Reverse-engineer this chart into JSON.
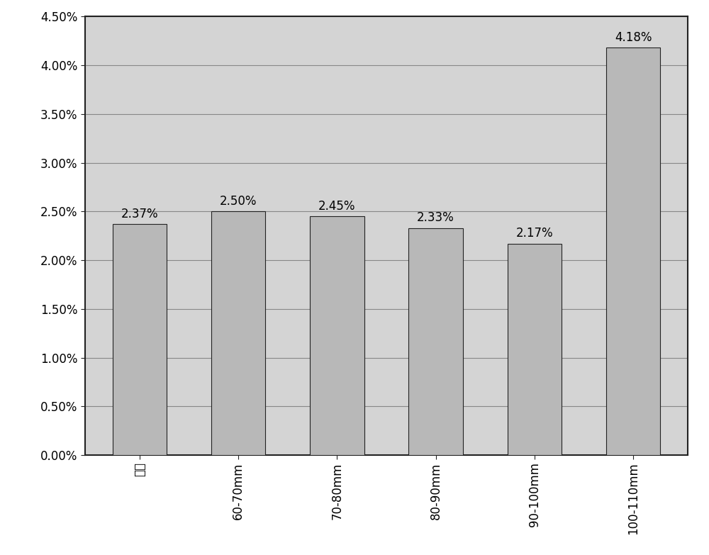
{
  "categories": [
    "平均",
    "60-70mm",
    "70-80mm",
    "80-90mm",
    "90-100mm",
    "100-110mm"
  ],
  "values": [
    0.0237,
    0.025,
    0.0245,
    0.0233,
    0.0217,
    0.0418
  ],
  "bar_color": "#b8b8b8",
  "bar_edge_color": "#222222",
  "value_labels": [
    "2.37%",
    "2.50%",
    "2.45%",
    "2.33%",
    "2.17%",
    "4.18%"
  ],
  "ylim": [
    0,
    0.045
  ],
  "yticks": [
    0.0,
    0.005,
    0.01,
    0.015,
    0.02,
    0.025,
    0.03,
    0.035,
    0.04,
    0.045
  ],
  "ytick_labels": [
    "0.00%",
    "0.50%",
    "1.00%",
    "1.50%",
    "2.00%",
    "2.50%",
    "3.00%",
    "3.50%",
    "4.00%",
    "4.50%"
  ],
  "plot_bg_color": "#d4d4d4",
  "outer_bg_color": "#ffffff",
  "grid_color": "#888888",
  "label_fontsize": 12,
  "tick_fontsize": 12,
  "value_fontsize": 12,
  "bar_width": 0.55
}
